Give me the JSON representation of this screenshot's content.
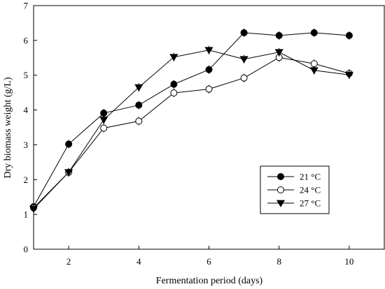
{
  "chart_data": {
    "type": "line",
    "title": "",
    "xlabel": "Fermentation period (days)",
    "ylabel": "Dry biomass weight (g/L)",
    "xlim": [
      1,
      11
    ],
    "ylim": [
      0,
      7
    ],
    "xticks": [
      2,
      4,
      6,
      8,
      10
    ],
    "yticks": [
      0,
      1,
      2,
      3,
      4,
      5,
      6,
      7
    ],
    "grid": false,
    "legend_position": "bottom-right",
    "series": [
      {
        "name": "21 °C",
        "marker": "filled-circle",
        "x": [
          1,
          2,
          3,
          4,
          5,
          6,
          7,
          8,
          9,
          10
        ],
        "y": [
          1.22,
          3.02,
          3.91,
          4.14,
          4.74,
          5.16,
          6.22,
          6.14,
          6.22,
          6.14
        ]
      },
      {
        "name": "24 °C",
        "marker": "open-circle",
        "x": [
          1,
          2,
          3,
          4,
          5,
          6,
          7,
          8,
          9,
          10
        ],
        "y": [
          1.19,
          2.21,
          3.48,
          3.68,
          4.49,
          4.6,
          4.92,
          5.51,
          5.33,
          5.05
        ]
      },
      {
        "name": "27 °C",
        "marker": "filled-triangle-down",
        "x": [
          1,
          2,
          3,
          4,
          5,
          6,
          7,
          8,
          9,
          10
        ],
        "y": [
          1.16,
          2.21,
          3.72,
          4.65,
          5.52,
          5.72,
          5.46,
          5.66,
          5.14,
          5.01
        ]
      }
    ]
  }
}
